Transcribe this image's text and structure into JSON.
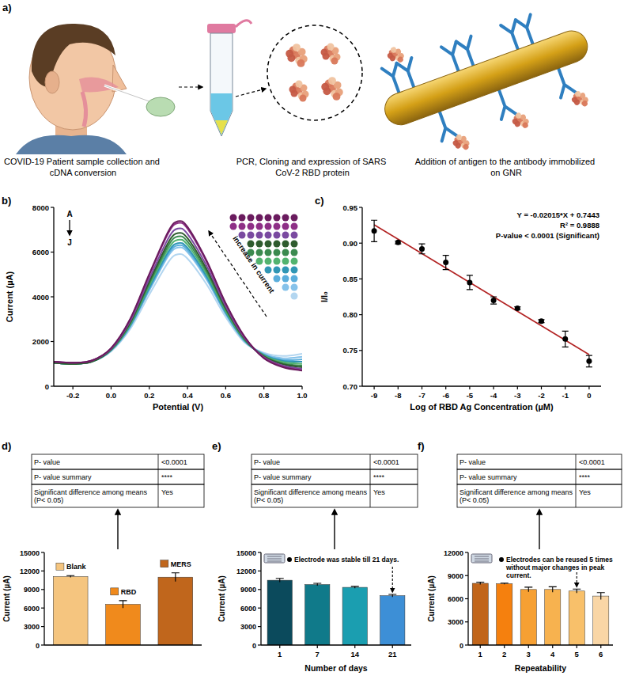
{
  "diagram": {
    "label": "a)",
    "captions": [
      "COVID-19 Patient sample collection and cDNA conversion",
      "PCR, Cloning and expression of SARS CoV-2 RBD protein",
      "Addition of antigen to the antibody immobilized on GNR"
    ]
  },
  "chart_data": [
    {
      "type": "line",
      "title": "b)",
      "xlabel": "Potential (V)",
      "ylabel": "Current (µA)",
      "annotations": [
        "A",
        "J",
        "increase in current"
      ],
      "x": [
        -0.3,
        -0.2,
        -0.1,
        0,
        0.1,
        0.2,
        0.3,
        0.35,
        0.4,
        0.5,
        0.6,
        0.7,
        0.8,
        0.9,
        1.0
      ],
      "series": [
        {
          "color": "#6a1b5e",
          "line_style": "solid",
          "values": [
            1100,
            1050,
            1150,
            1703,
            3009,
            5019,
            6928,
            7380,
            7129,
            5622,
            3712,
            2205,
            1250,
            850,
            700
          ]
        },
        {
          "color": "#8e2f86",
          "line_style": "solid",
          "values": [
            1100,
            1050,
            1150,
            1695,
            2985,
            4969,
            6854,
            7300,
            7052,
            5564,
            3679,
            2191,
            1280,
            880,
            720
          ]
        },
        {
          "color": "#7a4aa0",
          "line_style": "solid",
          "values": [
            1100,
            1050,
            1150,
            1671,
            2909,
            4813,
            6622,
            7050,
            6812,
            5384,
            3575,
            2147,
            1300,
            920,
            780
          ]
        },
        {
          "color": "#2e5b2e",
          "line_style": "solid",
          "values": [
            1050,
            1000,
            1100,
            1652,
            2848,
            4688,
            6436,
            6850,
            6620,
            5240,
            3492,
            2112,
            1330,
            980,
            850
          ]
        },
        {
          "color": "#3b8a4f",
          "line_style": "solid",
          "values": [
            1050,
            1000,
            1100,
            1638,
            2802,
            4594,
            6297,
            6700,
            6476,
            5132,
            3430,
            2086,
            1350,
            1020,
            920
          ]
        },
        {
          "color": "#52b36f",
          "line_style": "solid",
          "values": [
            1050,
            1000,
            1100,
            1623,
            2757,
            4501,
            6158,
            6550,
            6332,
            5024,
            3367,
            2059,
            1380,
            1080,
            1000
          ]
        },
        {
          "color": "#2f96b5",
          "line_style": "solid",
          "values": [
            1050,
            1000,
            1100,
            1609,
            2711,
            4407,
            6018,
            6400,
            6188,
            4916,
            3305,
            2033,
            1400,
            1130,
            1100
          ]
        },
        {
          "color": "#5aaedc",
          "line_style": "solid",
          "values": [
            1050,
            1000,
            1100,
            1599,
            2681,
            4345,
            5926,
            6300,
            6092,
            4844,
            3263,
            2015,
            1420,
            1180,
            1200
          ]
        },
        {
          "color": "#86c2ea",
          "line_style": "solid",
          "values": [
            1050,
            1000,
            1100,
            1590,
            2650,
            4282,
            5833,
            6200,
            5996,
            4772,
            3222,
            1998,
            1450,
            1250,
            1320
          ]
        },
        {
          "color": "#b3d6f0",
          "line_style": "solid",
          "values": [
            1050,
            1000,
            1100,
            1561,
            2559,
            4095,
            5554,
            5900,
            5708,
            4556,
            3097,
            1945,
            1500,
            1350,
            1450
          ]
        }
      ],
      "xlim": [
        -0.3,
        1.0
      ],
      "xticks": [
        -0.2,
        {
          "value": 0,
          "label": "0.0"
        },
        0.2,
        0.4,
        0.6,
        0.8,
        {
          "value": 1,
          "label": "1.0"
        }
      ],
      "ylim": [
        0,
        8000
      ],
      "yticks": [
        0,
        2000,
        4000,
        6000,
        8000
      ],
      "grid": false
    },
    {
      "type": "scatter",
      "title": "c)",
      "xlabel": "Log of RBD Ag Concentration (µM)",
      "ylabel": "I/I₀",
      "annotations": [
        "Y = -0.02015*X + 0.7443",
        "R² = 0.9888",
        "P-value < 0.0001 (Significant)"
      ],
      "x": [
        -9,
        -8,
        -7,
        -6,
        -5,
        -4,
        -3,
        -2,
        -1,
        0
      ],
      "series": [
        {
          "type": "scatter",
          "marker": "circle",
          "color": "#000000",
          "values": [
            0.917,
            0.901,
            0.892,
            0.873,
            0.845,
            0.82,
            0.809,
            0.791,
            0.766,
            0.735
          ],
          "errors": [
            0.015,
            0.002,
            0.007,
            0.01,
            0.01,
            0.005,
            0.002,
            0.002,
            0.011,
            0.008
          ]
        },
        {
          "type": "line",
          "line_style": "solid",
          "color": "#b22222",
          "x": [
            -9,
            0
          ],
          "values": [
            0.9257,
            0.7443
          ]
        }
      ],
      "xlim": [
        -9.5,
        0.5
      ],
      "xticks": [
        -9,
        -8,
        -7,
        -6,
        -5,
        -4,
        -3,
        -2,
        -1,
        0
      ],
      "ylim": [
        0.7,
        0.95
      ],
      "yticks": [
        {
          "value": 0.7,
          "label": "0.70"
        },
        0.75,
        {
          "value": 0.8,
          "label": "0.80"
        },
        0.85,
        {
          "value": 0.9,
          "label": "0.90"
        },
        0.95
      ],
      "grid": false
    },
    {
      "type": "bar",
      "title": "d)",
      "ylabel": "Current (µA)",
      "categories": [
        "Blank",
        "RBD",
        "MERS"
      ],
      "values": [
        11100,
        6600,
        11000
      ],
      "errors": [
        150,
        600,
        700
      ],
      "colors": [
        "#f5c57f",
        "#f08a1c",
        "#c0661c"
      ],
      "legend": "top",
      "tick_labels": "y",
      "ylim": [
        0,
        15000
      ],
      "yticks": [
        0,
        3000,
        6000,
        9000,
        12000,
        15000
      ],
      "grid": false,
      "table": {
        "rows": [
          [
            "P- value",
            "<0.0001"
          ],
          [
            "P- value summary",
            "****"
          ],
          [
            "Significant difference among means (P< 0.05)",
            "Yes"
          ]
        ]
      }
    },
    {
      "type": "bar",
      "title": "e)",
      "ylabel": "Current (µA)",
      "xlabel": "Number of days",
      "annotations": [
        "Electrode was stable till 21 days."
      ],
      "categories": [
        "1",
        "7",
        "14",
        "21"
      ],
      "values": [
        10500,
        9800,
        9350,
        8000
      ],
      "errors": [
        300,
        200,
        150,
        200
      ],
      "colors": [
        "#0b4a5c",
        "#107a8a",
        "#1b9eb0",
        "#3d8fd6"
      ],
      "ylim": [
        0,
        15000
      ],
      "yticks": [
        0,
        3000,
        6000,
        9000,
        12000,
        15000
      ],
      "grid": false,
      "table": {
        "rows": [
          [
            "P- value",
            "<0.0001"
          ],
          [
            "P- value summary",
            "****"
          ],
          [
            "Significant difference among means (P< 0.05)",
            "Yes"
          ]
        ]
      }
    },
    {
      "type": "bar",
      "title": "f)",
      "ylabel": "Current (µA)",
      "xlabel": "Repeatability",
      "annotations": [
        "Electrodes can be reused 5 times without major changes in peak current."
      ],
      "categories": [
        "1",
        "2",
        "3",
        "4",
        "5",
        "6"
      ],
      "values": [
        8000,
        7950,
        7200,
        7200,
        7000,
        6350
      ],
      "errors": [
        150,
        80,
        300,
        350,
        250,
        450
      ],
      "colors": [
        "#c1651a",
        "#f5800e",
        "#f6a033",
        "#f7b24f",
        "#f8c06a",
        "#f9d6a6"
      ],
      "ylim": [
        0,
        12000
      ],
      "yticks": [
        0,
        3000,
        6000,
        9000,
        12000
      ],
      "grid": false,
      "table": {
        "rows": [
          [
            "P- value",
            "<0.0001"
          ],
          [
            "P- value summary",
            "****"
          ],
          [
            "Significant difference among means (P< 0.05)",
            "Yes"
          ]
        ]
      }
    }
  ]
}
